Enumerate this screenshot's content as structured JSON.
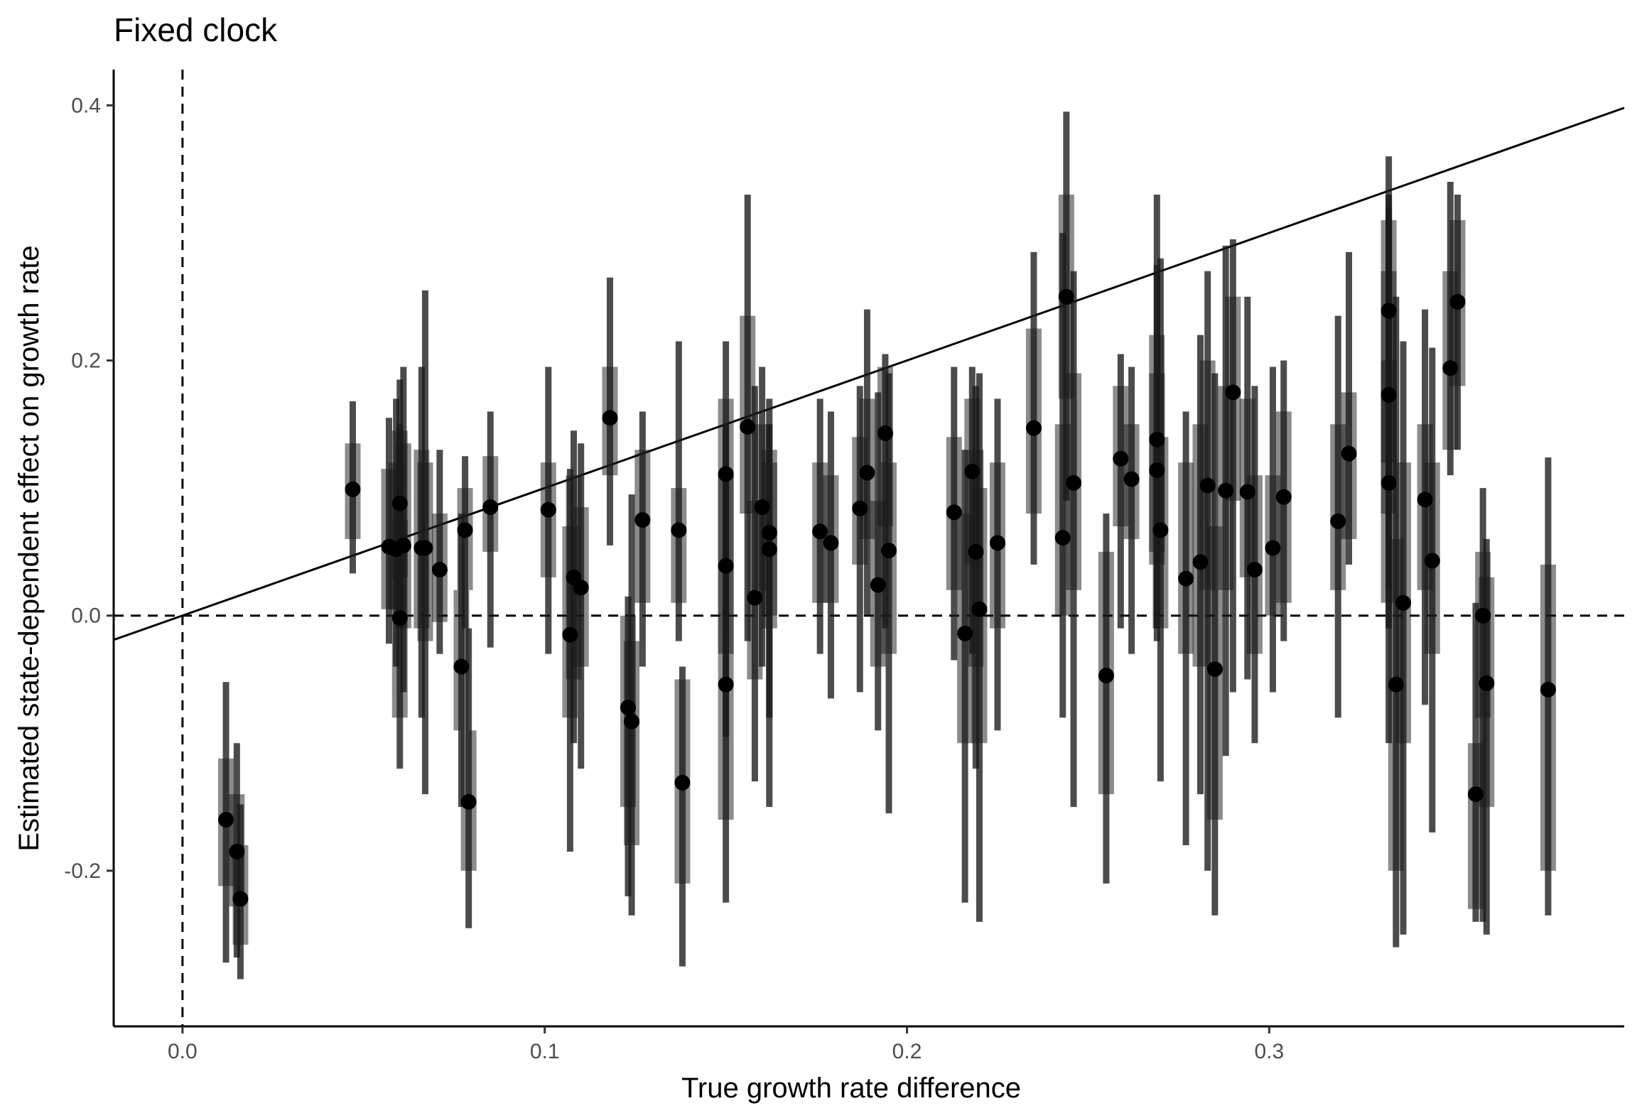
{
  "chart_data": {
    "type": "scatter",
    "title": "Fixed clock",
    "xlabel": "True growth rate difference",
    "ylabel": "Estimated state-dependent effect on growth rate",
    "xlim": [
      -0.019,
      0.398
    ],
    "ylim": [
      -0.322,
      0.428
    ],
    "x_ticks": [
      "0.0",
      "0.1",
      "0.2",
      "0.3"
    ],
    "y_ticks": [
      "-0.2",
      "0.0",
      "0.2",
      "0.4"
    ],
    "x_tick_values": [
      0.0,
      0.1,
      0.2,
      0.3
    ],
    "y_tick_values": [
      -0.2,
      0.0,
      0.2,
      0.4
    ],
    "grid": false,
    "reference_lines": [
      {
        "kind": "identity",
        "slope": 1,
        "intercept": 0,
        "style": "solid"
      },
      {
        "kind": "vertical",
        "x": 0,
        "style": "dashed"
      },
      {
        "kind": "horizontal",
        "y": 0,
        "style": "dashed"
      }
    ],
    "series": [
      {
        "style": "point with 50% interval (wide bar) and 95% interval (thin line)",
        "columns": [
          "x",
          "y",
          "lo50",
          "hi50",
          "lo95",
          "hi95"
        ],
        "points": [
          [
            0.012,
            -0.16,
            -0.212,
            -0.112,
            -0.272,
            -0.052
          ],
          [
            0.015,
            -0.185,
            -0.228,
            -0.14,
            -0.268,
            -0.1
          ],
          [
            0.016,
            -0.222,
            -0.258,
            -0.18,
            -0.285,
            -0.148
          ],
          [
            0.047,
            0.099,
            0.06,
            0.135,
            0.033,
            0.168
          ],
          [
            0.057,
            0.054,
            0.005,
            0.115,
            -0.022,
            0.155
          ],
          [
            0.059,
            0.052,
            0.005,
            0.12,
            -0.04,
            0.17
          ],
          [
            0.06,
            0.088,
            0.03,
            0.145,
            -0.01,
            0.185
          ],
          [
            0.06,
            -0.002,
            -0.08,
            0.075,
            -0.12,
            0.15
          ],
          [
            0.061,
            0.055,
            -0.01,
            0.135,
            -0.06,
            0.195
          ],
          [
            0.066,
            0.053,
            -0.01,
            0.13,
            -0.08,
            0.195
          ],
          [
            0.067,
            0.053,
            -0.02,
            0.12,
            -0.14,
            0.255
          ],
          [
            0.071,
            0.036,
            -0.005,
            0.08,
            -0.03,
            0.13
          ],
          [
            0.077,
            -0.04,
            -0.09,
            0.02,
            -0.15,
            0.08
          ],
          [
            0.078,
            0.067,
            0.02,
            0.1,
            -0.01,
            0.125
          ],
          [
            0.079,
            -0.146,
            -0.2,
            -0.09,
            -0.245,
            -0.01
          ],
          [
            0.085,
            0.085,
            0.05,
            0.125,
            -0.025,
            0.16
          ],
          [
            0.101,
            0.083,
            0.03,
            0.12,
            -0.03,
            0.195
          ],
          [
            0.107,
            -0.015,
            -0.08,
            0.07,
            -0.185,
            0.115
          ],
          [
            0.108,
            0.03,
            -0.05,
            0.11,
            -0.1,
            0.145
          ],
          [
            0.11,
            0.022,
            -0.04,
            0.085,
            -0.12,
            0.135
          ],
          [
            0.118,
            0.155,
            0.11,
            0.195,
            0.055,
            0.265
          ],
          [
            0.123,
            -0.072,
            -0.15,
            0.0,
            -0.22,
            0.015
          ],
          [
            0.124,
            -0.083,
            -0.18,
            -0.02,
            -0.235,
            0.095
          ],
          [
            0.127,
            0.075,
            0.01,
            0.13,
            -0.04,
            0.16
          ],
          [
            0.137,
            0.067,
            0.01,
            0.1,
            -0.02,
            0.215
          ],
          [
            0.138,
            -0.131,
            -0.21,
            -0.05,
            -0.275,
            -0.04
          ],
          [
            0.15,
            0.111,
            0.05,
            0.17,
            -0.01,
            0.215
          ],
          [
            0.15,
            0.039,
            -0.03,
            0.11,
            -0.095,
            0.15
          ],
          [
            0.15,
            -0.054,
            -0.16,
            0.05,
            -0.225,
            0.115
          ],
          [
            0.156,
            0.148,
            0.08,
            0.235,
            -0.02,
            0.33
          ],
          [
            0.158,
            0.014,
            -0.05,
            0.09,
            -0.13,
            0.18
          ],
          [
            0.16,
            0.085,
            0.02,
            0.15,
            -0.04,
            0.195
          ],
          [
            0.162,
            0.065,
            0.0,
            0.13,
            -0.08,
            0.15
          ],
          [
            0.162,
            0.052,
            -0.01,
            0.12,
            -0.15,
            0.17
          ],
          [
            0.176,
            0.066,
            0.01,
            0.12,
            -0.03,
            0.17
          ],
          [
            0.179,
            0.057,
            0.01,
            0.11,
            -0.065,
            0.16
          ],
          [
            0.187,
            0.084,
            0.04,
            0.14,
            -0.06,
            0.18
          ],
          [
            0.189,
            0.112,
            0.06,
            0.17,
            0.0,
            0.24
          ],
          [
            0.192,
            0.024,
            -0.04,
            0.09,
            -0.09,
            0.175
          ],
          [
            0.194,
            0.143,
            0.07,
            0.195,
            -0.01,
            0.205
          ],
          [
            0.195,
            0.051,
            -0.03,
            0.12,
            -0.155,
            0.19
          ],
          [
            0.213,
            0.081,
            0.02,
            0.14,
            -0.035,
            0.195
          ],
          [
            0.216,
            -0.014,
            -0.1,
            0.08,
            -0.225,
            0.13
          ],
          [
            0.218,
            0.113,
            0.04,
            0.17,
            -0.03,
            0.195
          ],
          [
            0.219,
            0.05,
            -0.04,
            0.13,
            -0.12,
            0.18
          ],
          [
            0.22,
            0.005,
            -0.1,
            0.1,
            -0.24,
            0.19
          ],
          [
            0.225,
            0.057,
            -0.01,
            0.12,
            -0.09,
            0.17
          ],
          [
            0.235,
            0.147,
            0.08,
            0.225,
            0.04,
            0.285
          ],
          [
            0.243,
            0.061,
            0.0,
            0.15,
            -0.08,
            0.3
          ],
          [
            0.244,
            0.25,
            0.17,
            0.33,
            0.09,
            0.395
          ],
          [
            0.246,
            0.104,
            0.02,
            0.19,
            -0.15,
            0.27
          ],
          [
            0.255,
            -0.047,
            -0.14,
            0.05,
            -0.21,
            0.08
          ],
          [
            0.259,
            0.123,
            0.07,
            0.18,
            -0.01,
            0.205
          ],
          [
            0.262,
            0.107,
            0.06,
            0.15,
            -0.03,
            0.195
          ],
          [
            0.269,
            0.138,
            0.05,
            0.22,
            -0.01,
            0.275
          ],
          [
            0.269,
            0.114,
            0.04,
            0.19,
            -0.02,
            0.33
          ],
          [
            0.27,
            0.067,
            -0.01,
            0.14,
            -0.13,
            0.28
          ],
          [
            0.277,
            0.029,
            -0.03,
            0.12,
            -0.18,
            0.16
          ],
          [
            0.281,
            0.042,
            -0.04,
            0.15,
            -0.14,
            0.22
          ],
          [
            0.283,
            0.102,
            0.02,
            0.2,
            -0.2,
            0.27
          ],
          [
            0.285,
            -0.042,
            -0.16,
            0.07,
            -0.235,
            0.19
          ],
          [
            0.288,
            0.098,
            0.02,
            0.18,
            -0.11,
            0.29
          ],
          [
            0.29,
            0.175,
            0.09,
            0.25,
            -0.06,
            0.295
          ],
          [
            0.294,
            0.097,
            0.03,
            0.17,
            -0.05,
            0.25
          ],
          [
            0.296,
            0.036,
            -0.03,
            0.11,
            -0.1,
            0.18
          ],
          [
            0.301,
            0.053,
            0.0,
            0.11,
            -0.06,
            0.195
          ],
          [
            0.304,
            0.093,
            0.01,
            0.16,
            -0.02,
            0.2
          ],
          [
            0.319,
            0.074,
            0.02,
            0.15,
            -0.08,
            0.235
          ],
          [
            0.322,
            0.127,
            0.06,
            0.175,
            0.04,
            0.285
          ],
          [
            0.333,
            0.239,
            0.12,
            0.31,
            0.02,
            0.36
          ],
          [
            0.333,
            0.173,
            0.08,
            0.27,
            -0.01,
            0.33
          ],
          [
            0.333,
            0.104,
            0.01,
            0.2,
            -0.1,
            0.32
          ],
          [
            0.335,
            -0.054,
            -0.2,
            0.06,
            -0.26,
            0.25
          ],
          [
            0.337,
            0.01,
            -0.1,
            0.12,
            -0.25,
            0.215
          ],
          [
            0.343,
            0.091,
            0.02,
            0.15,
            -0.07,
            0.24
          ],
          [
            0.345,
            0.043,
            -0.03,
            0.12,
            -0.17,
            0.21
          ],
          [
            0.35,
            0.194,
            0.13,
            0.27,
            0.11,
            0.34
          ],
          [
            0.352,
            0.246,
            0.18,
            0.31,
            0.13,
            0.33
          ],
          [
            0.357,
            -0.14,
            -0.23,
            -0.1,
            -0.24,
            0.01
          ],
          [
            0.359,
            0.0,
            -0.08,
            0.05,
            -0.24,
            0.1
          ],
          [
            0.36,
            -0.053,
            -0.15,
            0.03,
            -0.25,
            0.06
          ],
          [
            0.377,
            -0.058,
            -0.2,
            0.04,
            -0.235,
            0.124
          ]
        ]
      }
    ]
  }
}
